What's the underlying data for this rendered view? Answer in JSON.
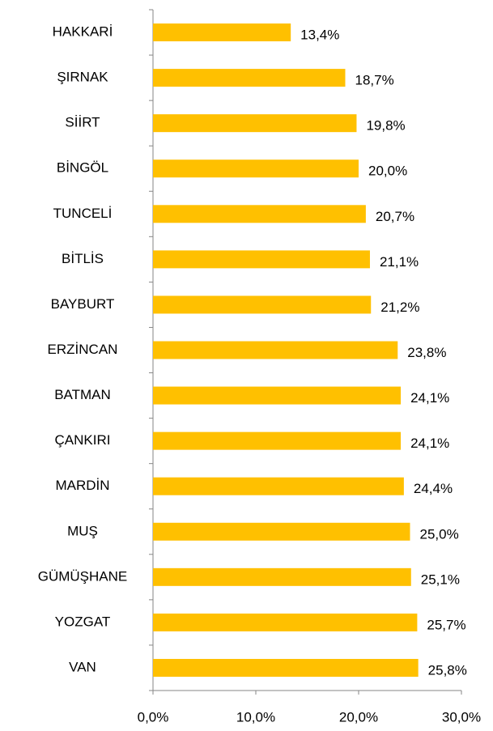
{
  "chart_data": {
    "type": "bar",
    "orientation": "horizontal",
    "categories": [
      "HAKKARİ",
      "ŞIRNAK",
      "SİİRT",
      "BİNGÖL",
      "TUNCELİ",
      "BİTLİS",
      "BAYBURT",
      "ERZİNCAN",
      "BATMAN",
      "ÇANKIRI",
      "MARDİN",
      "MUŞ",
      "GÜMÜŞHANE",
      "YOZGAT",
      "VAN"
    ],
    "values": [
      13.4,
      18.7,
      19.8,
      20.0,
      20.7,
      21.1,
      21.2,
      23.8,
      24.1,
      24.1,
      24.4,
      25.0,
      25.1,
      25.7,
      25.8
    ],
    "value_labels": [
      "13,4%",
      "18,7%",
      "19,8%",
      "20,0%",
      "20,7%",
      "21,1%",
      "21,2%",
      "23,8%",
      "24,1%",
      "24,1%",
      "24,4%",
      "25,0%",
      "25,1%",
      "25,7%",
      "25,8%"
    ],
    "color": "#FFC000",
    "xlim": [
      0,
      30
    ],
    "xticks": [
      {
        "value": 0,
        "label": "0,0%"
      },
      {
        "value": 10,
        "label": "10,0%"
      },
      {
        "value": 20,
        "label": "20,0%"
      },
      {
        "value": 30,
        "label": "30,0%"
      }
    ]
  }
}
